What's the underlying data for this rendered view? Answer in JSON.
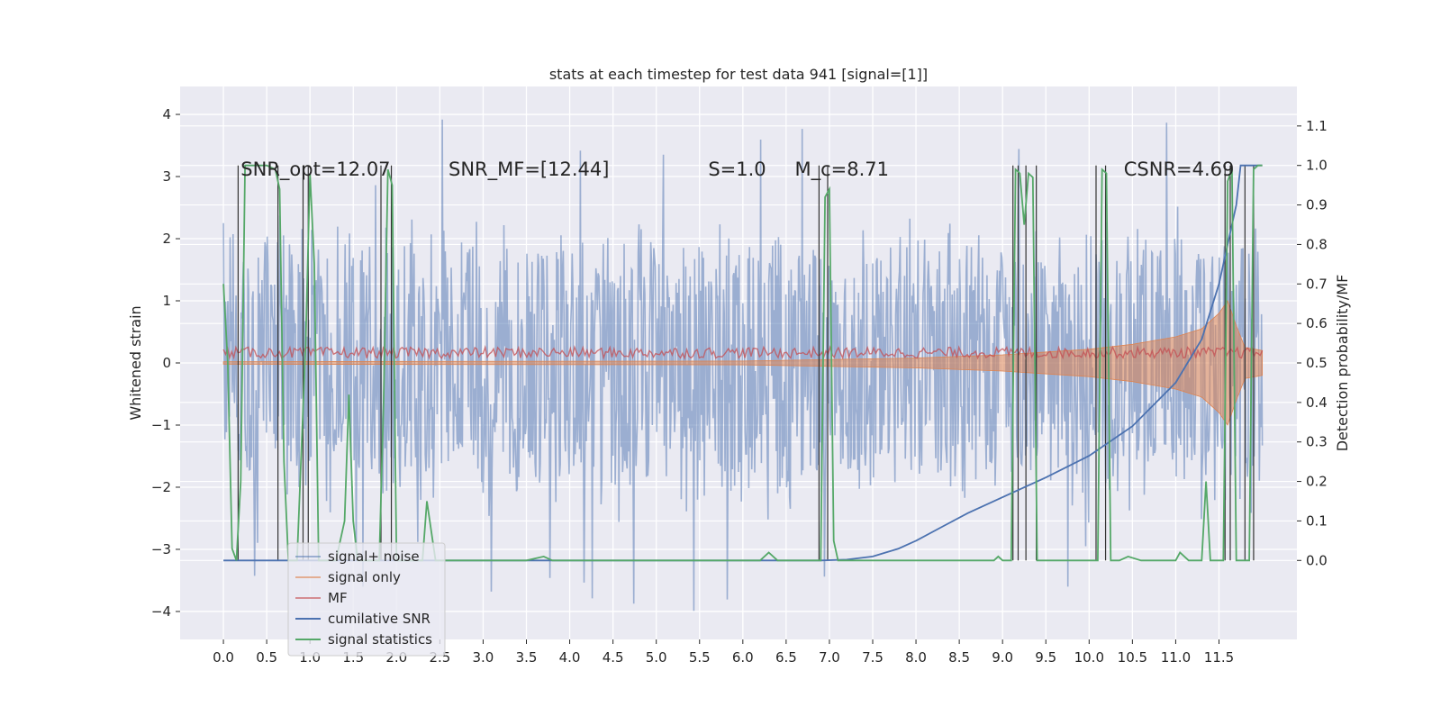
{
  "chart_data": {
    "type": "line",
    "title": "stats at each timestep for test data 941 [signal=[1]]",
    "xlabel": "",
    "ylabel_left": "Whitened strain",
    "ylabel_right": "Detection probability/MF",
    "xlim": [
      -0.5,
      12.4
    ],
    "ylim_left": [
      -4.45,
      4.45
    ],
    "ylim_right": [
      -0.2,
      1.2
    ],
    "x_ticks": [
      "0.0",
      "0.5",
      "1.0",
      "1.5",
      "2.0",
      "2.5",
      "3.0",
      "3.5",
      "4.0",
      "4.5",
      "5.0",
      "5.5",
      "6.0",
      "6.5",
      "7.0",
      "7.5",
      "8.0",
      "8.5",
      "9.0",
      "9.5",
      "10.0",
      "10.5",
      "11.0",
      "11.5"
    ],
    "y_ticks_left": [
      "−4",
      "−3",
      "−2",
      "−1",
      "0",
      "1",
      "2",
      "3",
      "4"
    ],
    "y_ticks_right": [
      "0.0",
      "0.1",
      "0.2",
      "0.3",
      "0.4",
      "0.5",
      "0.6",
      "0.7",
      "0.8",
      "0.9",
      "1.0",
      "1.1"
    ],
    "annotations": [
      {
        "text": "SNR_opt=12.07",
        "x": 0.2,
        "y_right": 0.99
      },
      {
        "text": "SNR_MF=[12.44]",
        "x": 2.6,
        "y_right": 0.99
      },
      {
        "text": "S=1.0",
        "x": 5.6,
        "y_right": 0.99
      },
      {
        "text": "M_c=8.71",
        "x": 6.6,
        "y_right": 0.99
      },
      {
        "text": "CSNR=4.69",
        "x": 10.4,
        "y_right": 0.99
      }
    ],
    "legend": {
      "placement": "lower-left",
      "entries": [
        "signal+ noise",
        "signal only",
        "MF",
        "cumilative SNR",
        "signal statistics"
      ]
    },
    "grid": true,
    "series": [
      {
        "name": "signal+ noise",
        "axis": "left",
        "color": "#4c72b0",
        "kind": "noise",
        "x_range": [
          0,
          12.0
        ],
        "typical_abs_max": 2.3,
        "extreme_min": -4.1,
        "extreme_max": 4.05
      },
      {
        "name": "signal only",
        "axis": "left",
        "color": "#dd8452",
        "kind": "chirp-envelope",
        "points": [
          [
            0,
            0.02
          ],
          [
            6,
            0.03
          ],
          [
            8,
            0.08
          ],
          [
            9,
            0.13
          ],
          [
            10,
            0.22
          ],
          [
            10.5,
            0.3
          ],
          [
            11,
            0.42
          ],
          [
            11.3,
            0.55
          ],
          [
            11.5,
            0.8
          ],
          [
            11.6,
            1.0
          ],
          [
            11.7,
            0.6
          ],
          [
            11.8,
            0.25
          ],
          [
            12.0,
            0.2
          ]
        ]
      },
      {
        "name": "MF",
        "axis": "right",
        "color": "#c44e52",
        "kind": "band",
        "y_range": [
          0.5,
          0.54
        ],
        "x_range": [
          0,
          12.0
        ]
      },
      {
        "name": "cumilative SNR",
        "axis": "right",
        "color": "#4c72b0",
        "points": [
          [
            0,
            0
          ],
          [
            6.9,
            0
          ],
          [
            7.2,
            0.002
          ],
          [
            7.5,
            0.01
          ],
          [
            7.8,
            0.03
          ],
          [
            8.0,
            0.05
          ],
          [
            8.3,
            0.085
          ],
          [
            8.6,
            0.12
          ],
          [
            9.0,
            0.16
          ],
          [
            9.5,
            0.21
          ],
          [
            10.0,
            0.265
          ],
          [
            10.5,
            0.34
          ],
          [
            11.0,
            0.45
          ],
          [
            11.3,
            0.56
          ],
          [
            11.5,
            0.7
          ],
          [
            11.6,
            0.8
          ],
          [
            11.7,
            0.9
          ],
          [
            11.75,
            1.0
          ],
          [
            12.0,
            1.0
          ]
        ]
      },
      {
        "name": "signal statistics",
        "axis": "right",
        "color": "#55a868",
        "points": [
          [
            0,
            0.7
          ],
          [
            0.05,
            0.5
          ],
          [
            0.1,
            0.03
          ],
          [
            0.15,
            0
          ],
          [
            0.2,
            0.2
          ],
          [
            0.25,
            1.0
          ],
          [
            0.3,
            1.0
          ],
          [
            0.4,
            1.0
          ],
          [
            0.5,
            1.0
          ],
          [
            0.6,
            0.99
          ],
          [
            0.65,
            0.94
          ],
          [
            0.7,
            0.25
          ],
          [
            0.75,
            0
          ],
          [
            0.85,
            0
          ],
          [
            0.95,
            0.55
          ],
          [
            1.0,
            0.98
          ],
          [
            1.05,
            0.75
          ],
          [
            1.1,
            0
          ],
          [
            1.3,
            0
          ],
          [
            1.4,
            0.1
          ],
          [
            1.45,
            0.42
          ],
          [
            1.5,
            0.1
          ],
          [
            1.55,
            0
          ],
          [
            1.8,
            0
          ],
          [
            1.85,
            0.4
          ],
          [
            1.9,
            0.99
          ],
          [
            1.95,
            0.95
          ],
          [
            2.0,
            0
          ],
          [
            2.3,
            0
          ],
          [
            2.35,
            0.15
          ],
          [
            2.45,
            0
          ],
          [
            3.5,
            0
          ],
          [
            3.7,
            0.01
          ],
          [
            3.8,
            0
          ],
          [
            6.2,
            0
          ],
          [
            6.3,
            0.02
          ],
          [
            6.4,
            0
          ],
          [
            6.9,
            0
          ],
          [
            6.95,
            0.92
          ],
          [
            7.0,
            0.94
          ],
          [
            7.05,
            0.05
          ],
          [
            7.1,
            0
          ],
          [
            8.9,
            0
          ],
          [
            8.95,
            0.01
          ],
          [
            9.0,
            0
          ],
          [
            9.1,
            0
          ],
          [
            9.15,
            0.99
          ],
          [
            9.2,
            0.98
          ],
          [
            9.25,
            0.85
          ],
          [
            9.3,
            0.98
          ],
          [
            9.35,
            0.97
          ],
          [
            9.4,
            0
          ],
          [
            10.1,
            0
          ],
          [
            10.15,
            0.99
          ],
          [
            10.2,
            0.98
          ],
          [
            10.25,
            0
          ],
          [
            10.35,
            0
          ],
          [
            10.45,
            0.01
          ],
          [
            10.6,
            0
          ],
          [
            11.0,
            0
          ],
          [
            11.05,
            0.02
          ],
          [
            11.15,
            0
          ],
          [
            11.3,
            0
          ],
          [
            11.35,
            0.2
          ],
          [
            11.4,
            0
          ],
          [
            11.55,
            0
          ],
          [
            11.6,
            0.96
          ],
          [
            11.65,
            0.99
          ],
          [
            11.7,
            0
          ],
          [
            11.85,
            0
          ],
          [
            11.9,
            0.99
          ],
          [
            11.95,
            1.0
          ],
          [
            12.0,
            1.0
          ]
        ]
      }
    ],
    "vertical_markers": [
      0.17,
      0.63,
      0.92,
      0.98,
      1.82,
      1.94,
      6.88,
      6.98,
      9.12,
      9.18,
      9.27,
      9.39,
      10.08,
      10.19,
      11.57,
      11.63,
      11.8,
      11.9
    ]
  }
}
